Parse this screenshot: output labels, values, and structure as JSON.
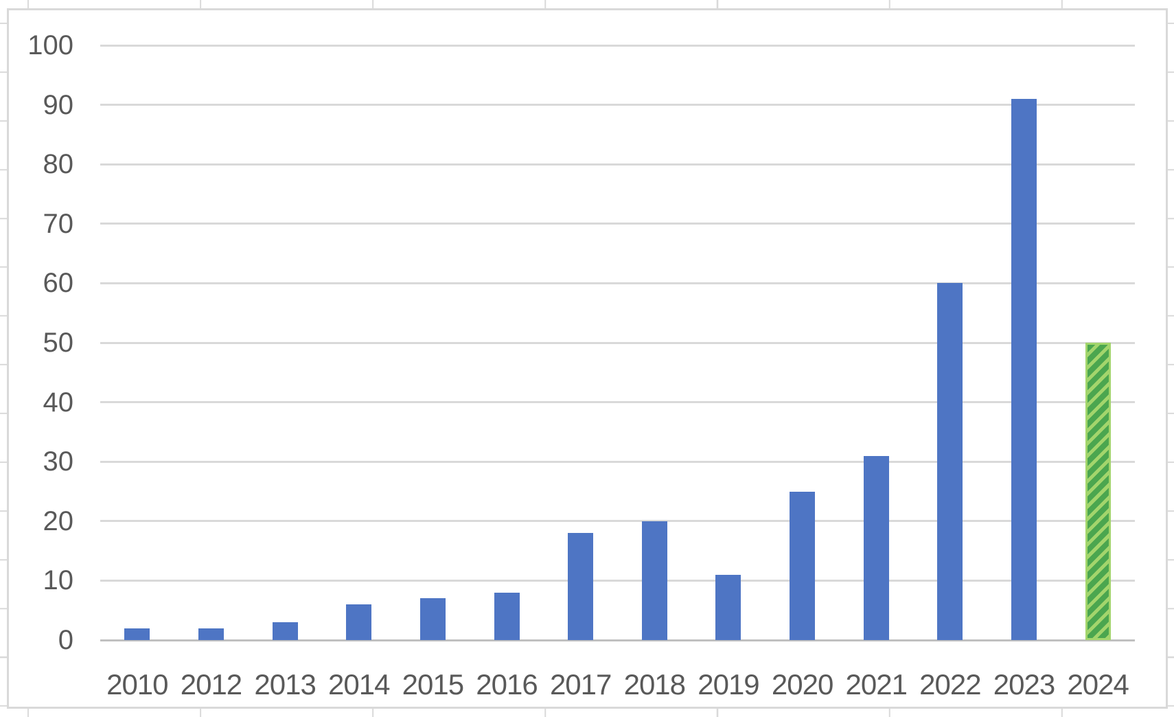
{
  "chart_data": {
    "type": "bar",
    "categories": [
      "2010",
      "2012",
      "2013",
      "2014",
      "2015",
      "2016",
      "2017",
      "2018",
      "2019",
      "2020",
      "2021",
      "2022",
      "2023",
      "2024"
    ],
    "values": [
      2,
      2,
      3,
      6,
      7,
      8,
      18,
      20,
      11,
      25,
      31,
      60,
      91,
      50
    ],
    "highlight_index": 13,
    "highlight_style": "diagonal-hatch",
    "title": "",
    "xlabel": "",
    "ylabel": "",
    "ylim": [
      0,
      100
    ],
    "ytick_step": 10,
    "y_ticks": [
      "100",
      "90",
      "80",
      "70",
      "60",
      "50",
      "40",
      "30",
      "20",
      "10",
      "0"
    ],
    "grid": "horizontal-on",
    "legend": "none",
    "colors": {
      "bar": "#4E75C4",
      "highlight_light": "#A3D56C",
      "highlight_dark": "#4BA64F",
      "grid": "#D9D9D9",
      "axis": "#C0C0C0",
      "label": "#595959",
      "chart_border": "#D9D9D9",
      "background": "#FFFFFF"
    }
  }
}
